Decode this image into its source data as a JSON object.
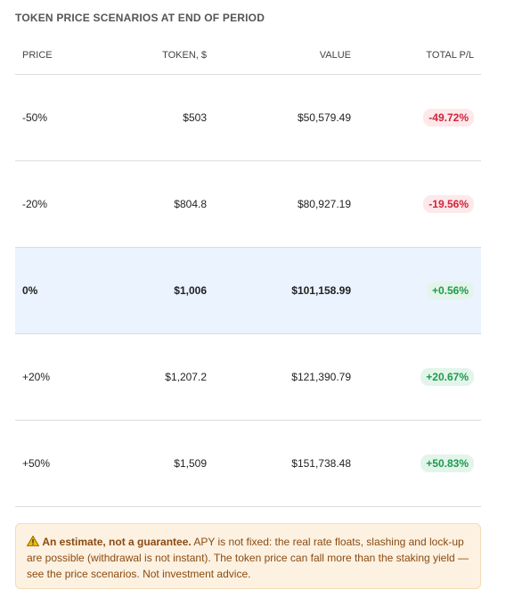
{
  "header": {
    "title": "TOKEN PRICE SCENARIOS AT END OF PERIOD"
  },
  "table": {
    "columns": [
      "PRICE",
      "TOKEN, $",
      "VALUE",
      "TOTAL P/L"
    ],
    "rows": [
      [
        "-50%",
        "$503",
        "$50,579.49",
        "-49.72%"
      ],
      [
        "-20%",
        "$804.8",
        "$80,927.19",
        "-19.56%"
      ],
      [
        "0%",
        "$1,006",
        "$101,158.99",
        "+0.56%"
      ],
      [
        "+20%",
        "$1,207.2",
        "$121,390.79",
        "+20.67%"
      ],
      [
        "+50%",
        "$1,509",
        "$151,738.48",
        "+50.83%"
      ]
    ]
  },
  "note": {
    "title": "An estimate, not a guarantee.",
    "text": "APY is not fixed: the real rate floats, slashing and lock-up are possible (withdrawal is not instant). The token price can fall more than the staking yield — see the price scenarios. Not investment advice."
  }
}
